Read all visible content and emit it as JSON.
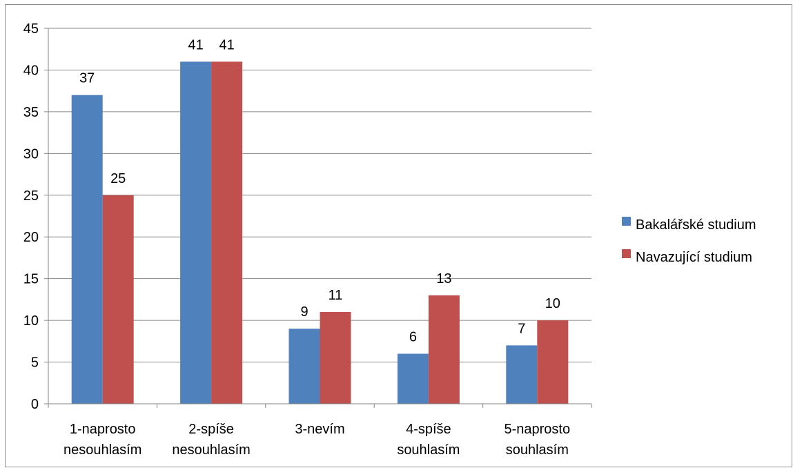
{
  "chart_data": {
    "type": "bar",
    "categories": [
      [
        "1-naprosto",
        "nesouhlasím"
      ],
      [
        "2-spíše",
        "nesouhlasím"
      ],
      [
        "3-nevím"
      ],
      [
        "4-spíše",
        "souhlasím"
      ],
      [
        "5-naprosto",
        "souhlasím"
      ]
    ],
    "series": [
      {
        "name": "Bakalářské studium",
        "color": "#4f81bd",
        "values": [
          37,
          41,
          9,
          6,
          7
        ]
      },
      {
        "name": "Navazující studium",
        "color": "#c0504d",
        "values": [
          25,
          41,
          11,
          13,
          10
        ]
      }
    ],
    "ylim": [
      0,
      45
    ],
    "yticks": [
      0,
      5,
      10,
      15,
      20,
      25,
      30,
      35,
      40,
      45
    ],
    "grid": true,
    "legend_position": "right",
    "data_labels": true
  }
}
